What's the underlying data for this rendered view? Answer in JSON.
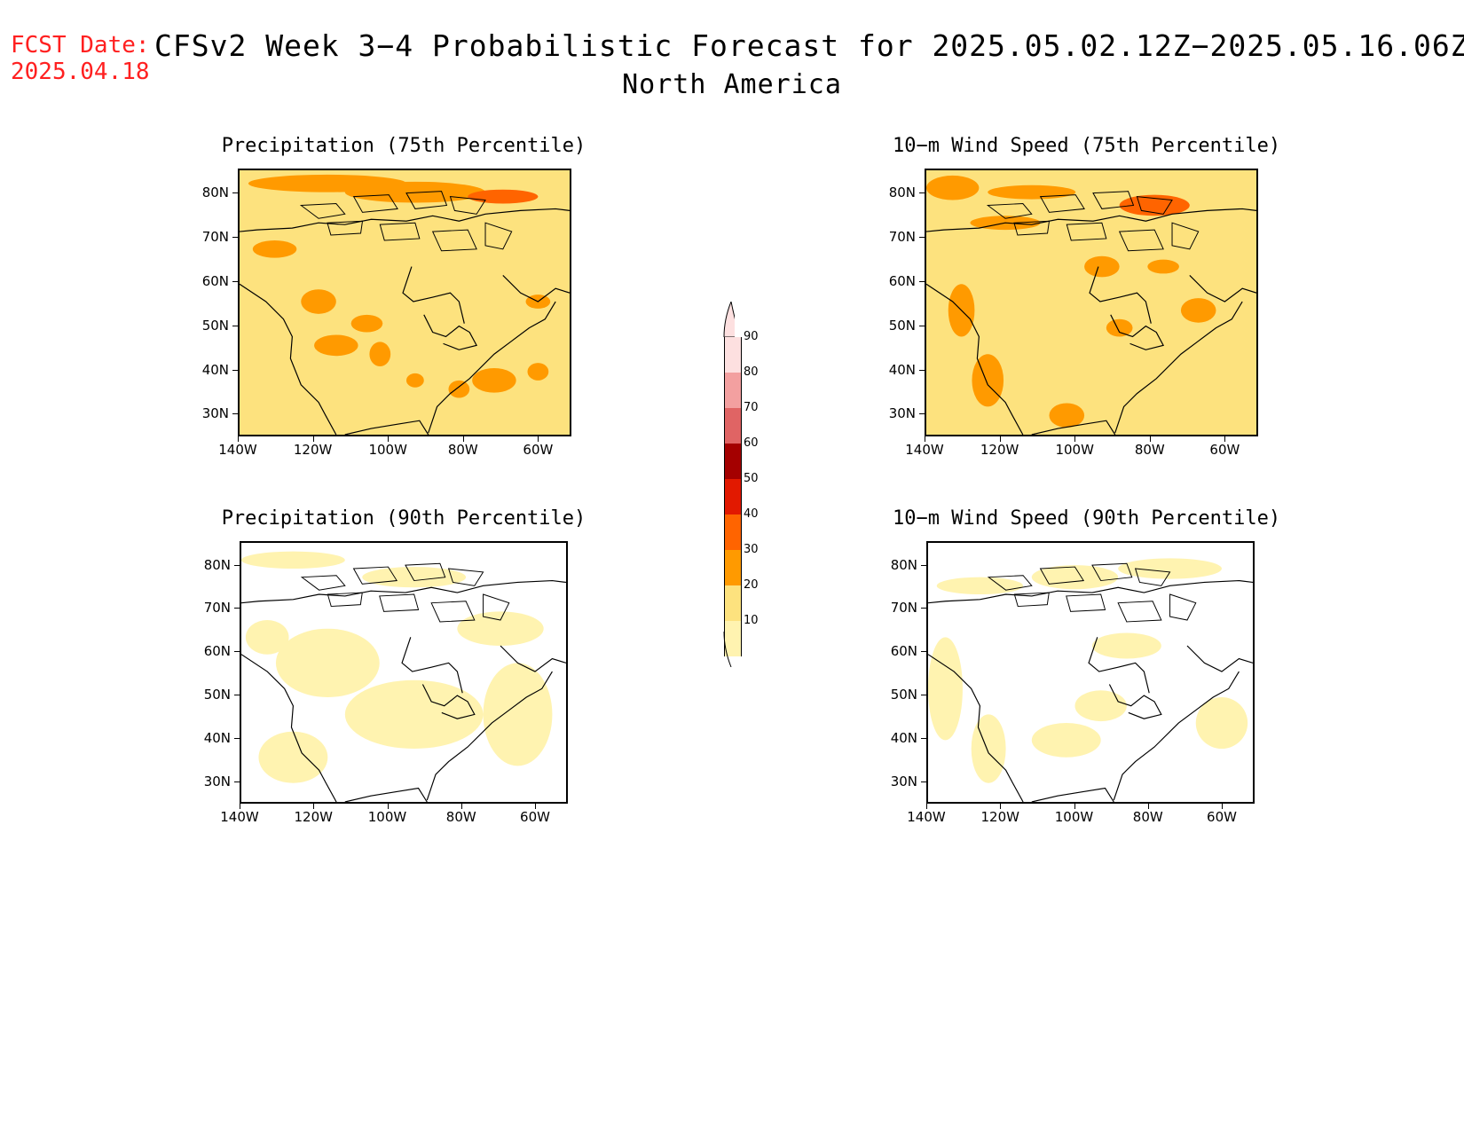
{
  "header": {
    "fcst_label": "FCST Date:",
    "fcst_date": "2025.04.18",
    "title": "CFSv2 Week 3−4 Probabilistic Forecast for 2025.05.02.12Z−2025.05.16.06Z",
    "region": "North America"
  },
  "panels": [
    {
      "title": "Precipitation (75th Percentile)",
      "bg": "#fde27e",
      "accent": "#ff9a00"
    },
    {
      "title": "10−m Wind Speed (75th Percentile)",
      "bg": "#fde27e",
      "accent": "#ff9a00"
    },
    {
      "title": "Precipitation (90th Percentile)",
      "bg": "#ffffff",
      "accent": "#fff3b0"
    },
    {
      "title": "10−m Wind Speed (90th Percentile)",
      "bg": "#ffffff",
      "accent": "#fff3b0"
    }
  ],
  "axes": {
    "lat_labels": [
      "80N",
      "70N",
      "60N",
      "50N",
      "40N",
      "30N"
    ],
    "lon_labels": [
      "140W",
      "120W",
      "100W",
      "80W",
      "60W"
    ]
  },
  "colorbar": {
    "labels": [
      "90",
      "80",
      "70",
      "60",
      "50",
      "40",
      "30",
      "20",
      "10"
    ],
    "colors": [
      "#fde0e0",
      "#f3a0a0",
      "#e06464",
      "#a40000",
      "#e21900",
      "#ff6400",
      "#ff9a00",
      "#fde27e",
      "#fff3b0"
    ]
  }
}
